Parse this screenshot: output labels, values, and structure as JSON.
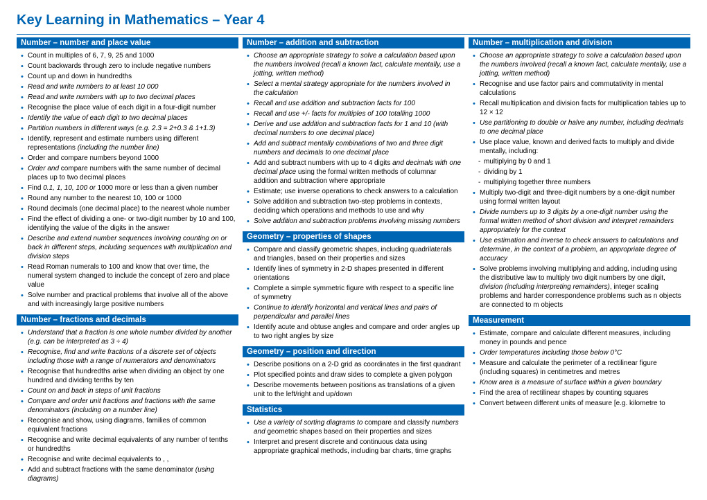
{
  "title": "Key Learning in Mathematics – Year 4",
  "colors": {
    "brand": "#0066b3",
    "text": "#000000",
    "bg": "#ffffff"
  },
  "columns": [
    {
      "sections": [
        {
          "heading": "Number – number and place value",
          "items": [
            {
              "t": "Count in multiples of 6, 7, 9, 25 and 1000"
            },
            {
              "t": "Count backwards through zero to include negative numbers"
            },
            {
              "t": "Count up and down in hundredths"
            },
            {
              "t": "Read and write numbers to at least 10 000",
              "i": true
            },
            {
              "t": "Read and write numbers with up to two decimal places",
              "i": true
            },
            {
              "t": "Recognise the place value of each digit in a four-digit number"
            },
            {
              "t": "Identify the value of each digit to two decimal places",
              "i": true
            },
            {
              "t": "Partition numbers in different ways (e.g. 2.3 = 2+0.3 & 1+1.3)",
              "i": true
            },
            {
              "t": "Identify, represent and estimate numbers using different representations <em>(including the number line)</em>"
            },
            {
              "t": "Order and compare numbers beyond 1000"
            },
            {
              "t": "<em>Order and</em> compare numbers with the same number of decimal places up to two decimal places"
            },
            {
              "t": "Find <em>0.1, 1, 10, 100 or</em> 1000 more or less than a given number"
            },
            {
              "t": "Round any number to the nearest 10, 100 or 1000"
            },
            {
              "t": "Round decimals (one decimal place) to the nearest whole number"
            },
            {
              "t": "Find the effect of dividing a one- or two-digit number by 10 and 100, identifying the value of the digits in the answer"
            },
            {
              "t": "Describe and extend number sequences involving counting on or back in different steps, including sequences with multiplication and division steps",
              "i": true
            },
            {
              "t": "Read Roman numerals to 100 and know that over time, the numeral system changed to include the concept of zero and place value"
            },
            {
              "t": "Solve number and practical problems that involve all of the above and with increasingly large positive numbers"
            }
          ]
        },
        {
          "heading": "Number – fractions and decimals",
          "items": [
            {
              "t": "Understand that a fraction is one whole number divided by another (e.g. can be interpreted as 3 ÷ 4)",
              "i": true
            },
            {
              "t": "Recognise, find and write fractions of a discrete set of objects including those with a range of numerators and denominators",
              "i": true
            },
            {
              "t": "Recognise that hundredths arise when dividing an object by one hundred and dividing tenths by ten"
            },
            {
              "t": "Count on and back in steps of unit fractions",
              "i": true
            },
            {
              "t": "Compare and order unit fractions and fractions with the same denominators (including on a number line)",
              "i": true
            },
            {
              "t": "Recognise and show, using diagrams, families of common equivalent fractions"
            },
            {
              "t": "Recognise and write decimal equivalents of any number of tenths or hundredths"
            },
            {
              "t": "Recognise and write decimal equivalents to , ,"
            },
            {
              "t": "Add and subtract fractions with the same denominator <em>(using diagrams)</em>"
            }
          ]
        }
      ]
    },
    {
      "sections": [
        {
          "heading": "Number – addition and subtraction",
          "items": [
            {
              "t": "Choose an appropriate strategy to solve a calculation based upon the numbers involved (recall a known fact, calculate mentally, use a jotting, written method)",
              "i": true
            },
            {
              "t": "Select a mental strategy appropriate for the numbers involved in the calculation",
              "i": true
            },
            {
              "t": "Recall and use addition and subtraction facts for 100",
              "i": true
            },
            {
              "t": "Recall and use +/- facts for multiples of 100 totalling 1000",
              "i": true
            },
            {
              "t": "Derive and use addition and subtraction facts for 1 and 10 (with decimal numbers to one decimal place)",
              "i": true
            },
            {
              "t": "Add and subtract mentally combinations of two and three digit numbers and decimals to one decimal place",
              "i": true
            },
            {
              "t": "Add and subtract numbers with up to 4 digits <em>and decimals with one decimal place</em> using the formal written methods of columnar addition and subtraction where appropriate"
            },
            {
              "t": "Estimate; use inverse operations to check answers to a calculation"
            },
            {
              "t": "Solve addition and subtraction two-step problems in contexts, deciding which operations and methods to use and why"
            },
            {
              "t": "Solve addition and subtraction problems involving missing numbers",
              "i": true
            }
          ]
        },
        {
          "heading": "Geometry – properties of shapes",
          "items": [
            {
              "t": "Compare and classify geometric shapes, including quadrilaterals and triangles, based on their properties and sizes"
            },
            {
              "t": "Identify lines of symmetry in 2-D shapes presented in different orientations"
            },
            {
              "t": "Complete a simple symmetric figure with respect to a specific line of symmetry"
            },
            {
              "t": "Continue to identify horizontal and vertical lines and pairs of perpendicular and parallel lines",
              "i": true
            },
            {
              "t": "Identify acute and obtuse angles and compare and order angles up to two right angles by size"
            }
          ]
        },
        {
          "heading": "Geometry – position and direction",
          "items": [
            {
              "t": "Describe positions on a 2-D grid as coordinates in the first quadrant"
            },
            {
              "t": "Plot specified points and draw sides to complete a given polygon"
            },
            {
              "t": "Describe movements between positions as translations of a given unit to the left/right and up/down"
            }
          ]
        },
        {
          "heading": "Statistics",
          "items": [
            {
              "t": "<em>Use a variety of sorting diagrams to</em> compare and classify <em>numbers and</em> geometric shapes based on their properties and sizes"
            },
            {
              "t": "Interpret and present discrete and continuous data using appropriate graphical methods, including bar charts, time graphs"
            }
          ]
        }
      ]
    },
    {
      "sections": [
        {
          "heading": "Number – multiplication and division",
          "items": [
            {
              "t": "Choose an appropriate strategy to solve a calculation based upon the numbers involved (recall a known fact, calculate mentally, use a jotting, written method)",
              "i": true
            },
            {
              "t": "Recognise and use factor pairs and commutativity in mental calculations"
            },
            {
              "t": "Recall multiplication and division facts for multiplication tables up to 12 × 12"
            },
            {
              "t": "Use partitioning to double or halve any number, including decimals to one decimal place",
              "i": true
            },
            {
              "t": "Use place value, known and derived facts to multiply and divide mentally, including:"
            },
            {
              "t": "multiplying by 0 and 1",
              "sub": true
            },
            {
              "t": "dividing by 1",
              "sub": true
            },
            {
              "t": "multiplying together three numbers",
              "sub": true
            },
            {
              "t": "Multiply two-digit and three-digit numbers by a one-digit number using formal written layout"
            },
            {
              "t": "Divide numbers up to 3 digits by a one-digit number using the formal written method of short division and interpret remainders appropriately for the context",
              "i": true
            },
            {
              "t": "Use estimation and inverse to check answers to calculations and determine, in the context of a problem, an appropriate degree of accuracy",
              "i": true
            },
            {
              "t": "Solve problems involving multiplying and adding, including using the distributive law to multiply two digit numbers by one digit, <em>division (including interpreting remainders)</em>, integer scaling problems and harder correspondence problems such as n objects are connected to m objects"
            }
          ]
        },
        {
          "heading": "Measurement",
          "items": [
            {
              "t": "Estimate, compare and calculate different measures, including money in pounds and pence"
            },
            {
              "t": "Order temperatures including those below 0°C",
              "i": true
            },
            {
              "t": "Measure and calculate the perimeter of a rectilinear figure (including squares) in centimetres and metres"
            },
            {
              "t": "Know area is a measure of surface within a given boundary",
              "i": true
            },
            {
              "t": "Find the area of rectilinear shapes by counting squares"
            },
            {
              "t": "Convert between different units of measure [e.g. kilometre to"
            }
          ]
        }
      ]
    }
  ]
}
